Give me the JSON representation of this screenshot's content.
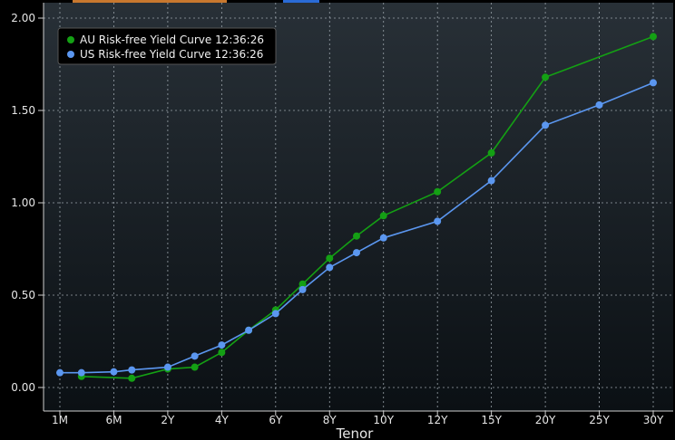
{
  "chart_data": {
    "type": "line",
    "title": "",
    "xlabel": "Tenor",
    "ylabel": "",
    "ylim": [
      -0.06,
      2.05
    ],
    "grid": true,
    "legend_position": "top-left",
    "x_ticks": [
      {
        "label": "1M",
        "years": 0.0833
      },
      {
        "label": "6M",
        "years": 0.5
      },
      {
        "label": "2Y",
        "years": 2
      },
      {
        "label": "4Y",
        "years": 4
      },
      {
        "label": "6Y",
        "years": 6
      },
      {
        "label": "8Y",
        "years": 8
      },
      {
        "label": "10Y",
        "years": 10
      },
      {
        "label": "12Y",
        "years": 12
      },
      {
        "label": "15Y",
        "years": 15
      },
      {
        "label": "20Y",
        "years": 20
      },
      {
        "label": "25Y",
        "years": 25
      },
      {
        "label": "30Y",
        "years": 30
      }
    ],
    "y_ticks": [
      "0.00",
      "0.50",
      "1.00",
      "1.50",
      "2.00"
    ],
    "series": [
      {
        "name": "AU Risk-free Yield Curve 12:36:26",
        "color": "#14a014",
        "points": [
          {
            "tenor": "3M",
            "years": 0.25,
            "value": 0.06
          },
          {
            "tenor": "1Y",
            "years": 1,
            "value": 0.05
          },
          {
            "tenor": "2Y",
            "years": 2,
            "value": 0.1
          },
          {
            "tenor": "3Y",
            "years": 3,
            "value": 0.11
          },
          {
            "tenor": "4Y",
            "years": 4,
            "value": 0.19
          },
          {
            "tenor": "5Y",
            "years": 5,
            "value": 0.31
          },
          {
            "tenor": "6Y",
            "years": 6,
            "value": 0.42
          },
          {
            "tenor": "7Y",
            "years": 7,
            "value": 0.56
          },
          {
            "tenor": "8Y",
            "years": 8,
            "value": 0.7
          },
          {
            "tenor": "9Y",
            "years": 9,
            "value": 0.82
          },
          {
            "tenor": "10Y",
            "years": 10,
            "value": 0.93
          },
          {
            "tenor": "12Y",
            "years": 12,
            "value": 1.06
          },
          {
            "tenor": "15Y",
            "years": 15,
            "value": 1.27
          },
          {
            "tenor": "20Y",
            "years": 20,
            "value": 1.68
          },
          {
            "tenor": "30Y",
            "years": 30,
            "value": 1.9
          }
        ]
      },
      {
        "name": "US Risk-free Yield Curve 12:36:26",
        "color": "#5b97f0",
        "points": [
          {
            "tenor": "1M",
            "years": 0.0833,
            "value": 0.08
          },
          {
            "tenor": "3M",
            "years": 0.25,
            "value": 0.08
          },
          {
            "tenor": "6M",
            "years": 0.5,
            "value": 0.085
          },
          {
            "tenor": "1Y",
            "years": 1,
            "value": 0.095
          },
          {
            "tenor": "2Y",
            "years": 2,
            "value": 0.11
          },
          {
            "tenor": "3Y",
            "years": 3,
            "value": 0.17
          },
          {
            "tenor": "4Y",
            "years": 4,
            "value": 0.23
          },
          {
            "tenor": "5Y",
            "years": 5,
            "value": 0.31
          },
          {
            "tenor": "6Y",
            "years": 6,
            "value": 0.4
          },
          {
            "tenor": "7Y",
            "years": 7,
            "value": 0.53
          },
          {
            "tenor": "8Y",
            "years": 8,
            "value": 0.65
          },
          {
            "tenor": "9Y",
            "years": 9,
            "value": 0.73
          },
          {
            "tenor": "10Y",
            "years": 10,
            "value": 0.81
          },
          {
            "tenor": "12Y",
            "years": 12,
            "value": 0.9
          },
          {
            "tenor": "15Y",
            "years": 15,
            "value": 1.12
          },
          {
            "tenor": "20Y",
            "years": 20,
            "value": 1.42
          },
          {
            "tenor": "25Y",
            "years": 25,
            "value": 1.53
          },
          {
            "tenor": "30Y",
            "years": 30,
            "value": 1.65
          }
        ]
      }
    ]
  },
  "theme": {
    "background_top": "#283037",
    "background_bottom": "#0b1014",
    "grid_color": "#9aa3aa",
    "axis_text_color": "#e6e6e6",
    "accent_tab_orange": "#c8782e",
    "accent_tab_blue": "#2a6bd6"
  }
}
